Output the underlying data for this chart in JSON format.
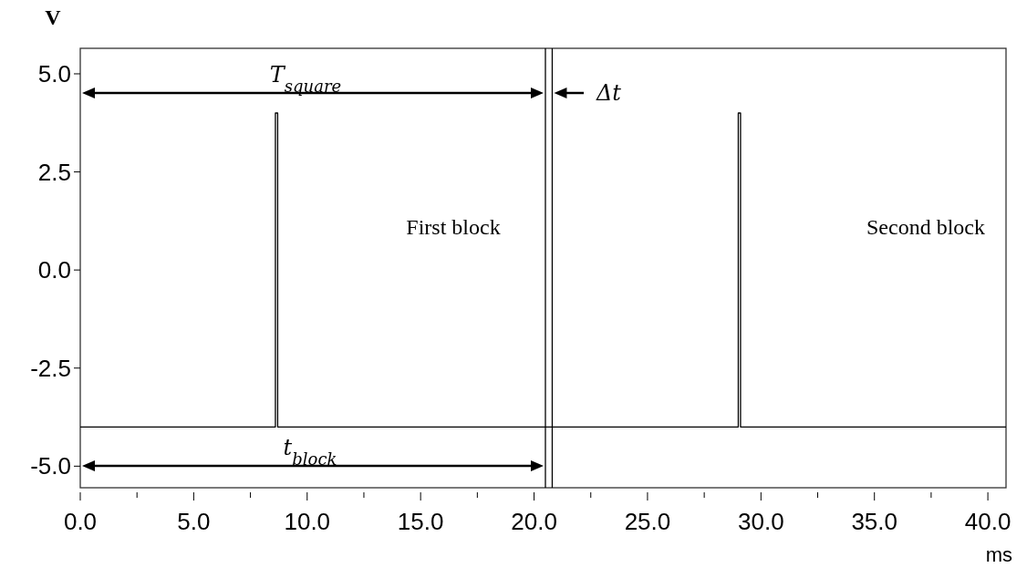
{
  "chart_data": {
    "type": "line",
    "xlabel": "ms",
    "ylabel": "V",
    "series": [
      {
        "color": "#000000",
        "x": [
          0,
          8.6,
          8.6,
          8.7,
          8.7,
          29.0,
          29.0,
          29.1,
          29.1,
          40.8
        ],
        "values": [
          -4,
          -4,
          4,
          4,
          -4,
          -4,
          4,
          4,
          -4,
          -4
        ]
      }
    ],
    "xlim": [
      0,
      40.8
    ],
    "ylim": [
      -5.55,
      5.65
    ],
    "xticks": [
      {
        "value": 0,
        "label": "0.0"
      },
      {
        "value": 2.5,
        "label": null
      },
      {
        "value": 5,
        "label": "5.0"
      },
      {
        "value": 7.5,
        "label": null
      },
      {
        "value": 10,
        "label": "10.0"
      },
      {
        "value": 12.5,
        "label": null
      },
      {
        "value": 15,
        "label": "15.0"
      },
      {
        "value": 17.5,
        "label": null
      },
      {
        "value": 20,
        "label": "20.0"
      },
      {
        "value": 22.5,
        "label": null
      },
      {
        "value": 25,
        "label": "25.0"
      },
      {
        "value": 27.5,
        "label": null
      },
      {
        "value": 30,
        "label": "30.0"
      },
      {
        "value": 32.5,
        "label": null
      },
      {
        "value": 35,
        "label": "35.0"
      },
      {
        "value": 37.5,
        "label": null
      },
      {
        "value": 40,
        "label": "40.0"
      }
    ],
    "yticks": [
      {
        "value": 5,
        "label": "5.0"
      },
      2.5,
      {
        "value": 0,
        "label": "0.0"
      },
      -2.5,
      {
        "value": -5,
        "label": "-5.0"
      }
    ],
    "ref_lines": [
      {
        "axis": "x",
        "value": 20.5,
        "color": "#000000"
      },
      {
        "axis": "x",
        "value": 20.8,
        "color": "#000000"
      }
    ],
    "annotations": [
      "T$_{square}$",
      "Δt",
      "First block",
      "Second block",
      "t$_{block}$"
    ],
    "grid": false,
    "marker": "none",
    "line_style": "solid"
  }
}
